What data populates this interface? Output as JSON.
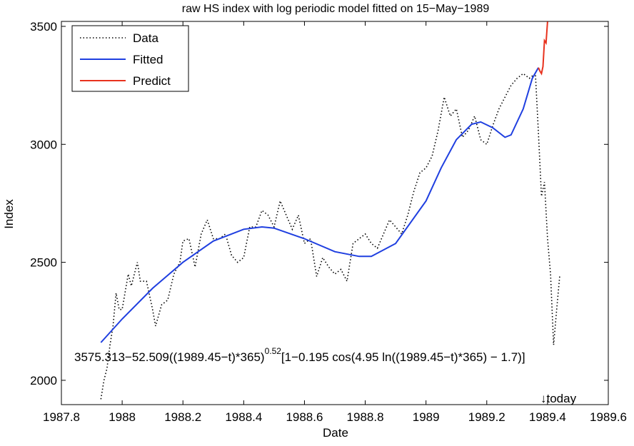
{
  "chart_data": {
    "type": "line",
    "title": "raw HS index with log periodic model fitted on 15−May−1989",
    "x_label": "Date",
    "y_label": "Index",
    "xlim": [
      1987.8,
      1989.6
    ],
    "xticks": [
      1987.8,
      1988,
      1988.2,
      1988.4,
      1988.6,
      1988.8,
      1989,
      1989.2,
      1989.4,
      1989.6
    ],
    "ylim": [
      1897,
      3521
    ],
    "yticks": [
      2000,
      2500,
      3000,
      3500
    ],
    "grid": false,
    "legend": "upper-left",
    "series": [
      {
        "name": "Data",
        "color": "#000000",
        "style": "dotted",
        "x": [
          1987.93,
          1987.94,
          1987.95,
          1987.96,
          1987.97,
          1987.98,
          1987.99,
          1988.0,
          1988.02,
          1988.03,
          1988.05,
          1988.06,
          1988.08,
          1988.1,
          1988.11,
          1988.13,
          1988.15,
          1988.17,
          1988.19,
          1988.2,
          1988.22,
          1988.24,
          1988.26,
          1988.28,
          1988.3,
          1988.32,
          1988.34,
          1988.36,
          1988.38,
          1988.4,
          1988.42,
          1988.44,
          1988.46,
          1988.48,
          1988.5,
          1988.52,
          1988.54,
          1988.56,
          1988.58,
          1988.6,
          1988.62,
          1988.64,
          1988.66,
          1988.68,
          1988.7,
          1988.72,
          1988.74,
          1988.76,
          1988.78,
          1988.8,
          1988.82,
          1988.84,
          1988.86,
          1988.88,
          1988.9,
          1988.92,
          1988.94,
          1988.96,
          1988.98,
          1989.0,
          1989.02,
          1989.04,
          1989.06,
          1989.08,
          1989.1,
          1989.12,
          1989.14,
          1989.16,
          1989.18,
          1989.2,
          1989.22,
          1989.24,
          1989.26,
          1989.28,
          1989.3,
          1989.32,
          1989.34,
          1989.36,
          1989.37,
          1989.38,
          1989.39,
          1989.4,
          1989.41,
          1989.42,
          1989.43,
          1989.44
        ],
        "values": [
          1920,
          2000,
          2050,
          2150,
          2230,
          2370,
          2300,
          2300,
          2450,
          2400,
          2500,
          2420,
          2420,
          2300,
          2230,
          2320,
          2340,
          2450,
          2500,
          2590,
          2600,
          2480,
          2620,
          2680,
          2600,
          2600,
          2620,
          2530,
          2500,
          2520,
          2650,
          2650,
          2720,
          2700,
          2650,
          2760,
          2700,
          2640,
          2700,
          2580,
          2600,
          2440,
          2520,
          2480,
          2450,
          2470,
          2420,
          2580,
          2600,
          2620,
          2580,
          2560,
          2620,
          2680,
          2650,
          2620,
          2700,
          2800,
          2880,
          2900,
          2950,
          3060,
          3200,
          3120,
          3150,
          3030,
          3060,
          3120,
          3020,
          3000,
          3080,
          3150,
          3200,
          3250,
          3280,
          3300,
          3280,
          3300,
          3050,
          2780,
          2840,
          2600,
          2450,
          2150,
          2300,
          2440
        ]
      },
      {
        "name": "Fitted",
        "color": "#1f3fe0",
        "style": "solid",
        "x": [
          1987.93,
          1988.0,
          1988.1,
          1988.2,
          1988.3,
          1988.4,
          1988.46,
          1988.5,
          1988.6,
          1988.7,
          1988.78,
          1988.82,
          1988.9,
          1989.0,
          1989.05,
          1989.1,
          1989.15,
          1989.18,
          1989.22,
          1989.26,
          1989.28,
          1989.32,
          1989.35,
          1989.37
        ],
        "values": [
          2160,
          2260,
          2390,
          2500,
          2590,
          2640,
          2650,
          2645,
          2600,
          2545,
          2525,
          2525,
          2580,
          2760,
          2900,
          3020,
          3085,
          3095,
          3070,
          3030,
          3040,
          3150,
          3280,
          3325
        ]
      },
      {
        "name": "Predict",
        "color": "#e8321e",
        "style": "solid",
        "x": [
          1989.37,
          1989.375,
          1989.38,
          1989.385,
          1989.39,
          1989.395,
          1989.4
        ],
        "values": [
          3325,
          3310,
          3300,
          3330,
          3440,
          3430,
          3520
        ]
      }
    ],
    "annotations": [
      "3575.313−52.509((1989.45−t)*365)",
      "0.52",
      "[1−0.195 cos(4.95 ln((1989.45−t)*365) − 1.7)]",
      "↓today"
    ]
  }
}
